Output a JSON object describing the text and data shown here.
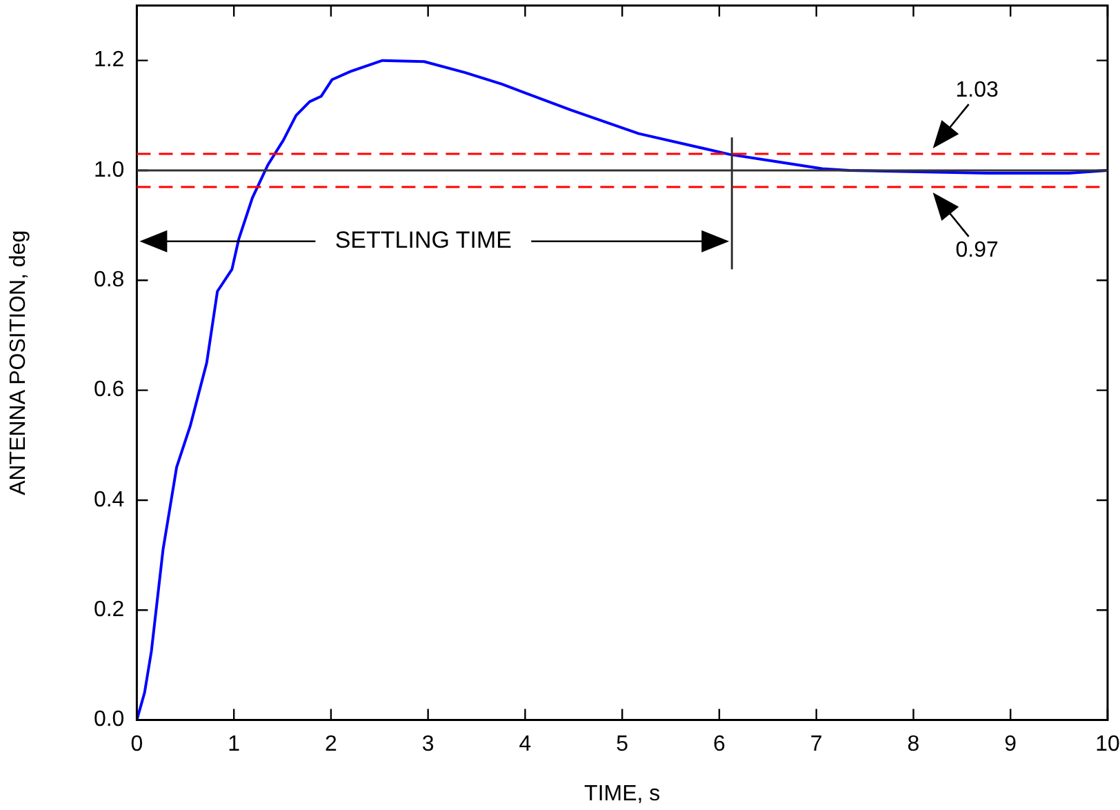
{
  "chart_data": {
    "type": "line",
    "xlabel": "TIME, s",
    "ylabel": "ANTENNA POSITION, deg",
    "xlim": [
      0,
      10
    ],
    "xticks": [
      0,
      1,
      2,
      3,
      4,
      5,
      6,
      7,
      8,
      9,
      10
    ],
    "ylim": [
      0,
      1.3
    ],
    "yticks": [
      {
        "value": 0,
        "label": "0.0"
      },
      {
        "value": 0.2,
        "label": "0.2"
      },
      {
        "value": 0.4,
        "label": "0.4"
      },
      {
        "value": 0.6,
        "label": "0.6"
      },
      {
        "value": 0.8,
        "label": "0.8"
      },
      {
        "value": 1,
        "label": "1.0"
      },
      {
        "value": 1.2,
        "label": "1.2"
      }
    ],
    "grid": false,
    "legend": false,
    "marker": "none",
    "line_style": "solid",
    "series": [
      {
        "color": "#0000ff",
        "x": [
          0,
          0.08,
          0.15,
          0.27,
          0.41,
          0.55,
          0.72,
          0.83,
          0.98,
          1.05,
          1.19,
          1.35,
          1.51,
          1.64,
          1.78,
          1.9,
          2.01,
          2.2,
          2.53,
          2.96,
          3.38,
          3.76,
          4.47,
          5.17,
          6.11,
          6.59,
          7.06,
          7.34,
          8.76,
          9.6,
          10
        ],
        "values": [
          0,
          0.05,
          0.125,
          0.31,
          0.46,
          0.535,
          0.65,
          0.78,
          0.82,
          0.875,
          0.95,
          1.01,
          1.055,
          1.1,
          1.125,
          1.135,
          1.165,
          1.18,
          1.2,
          1.198,
          1.178,
          1.157,
          1.11,
          1.067,
          1.029,
          1.016,
          1.003,
          1.0,
          0.995,
          0.995,
          1.0
        ]
      }
    ],
    "ref_lines": [
      {
        "axis": "y",
        "value": 1.03,
        "color": "#ff0000",
        "line_style": "dashed",
        "label": "1.03"
      },
      {
        "axis": "y",
        "value": 1.0,
        "color": "#333333",
        "line_style": "solid"
      },
      {
        "axis": "y",
        "value": 0.97,
        "color": "#ff0000",
        "line_style": "dashed",
        "label": "0.97"
      },
      {
        "axis": "x",
        "value": 6.13,
        "color": "#333333",
        "line_style": "solid"
      }
    ],
    "annotations": [
      "SETTLING TIME"
    ]
  }
}
